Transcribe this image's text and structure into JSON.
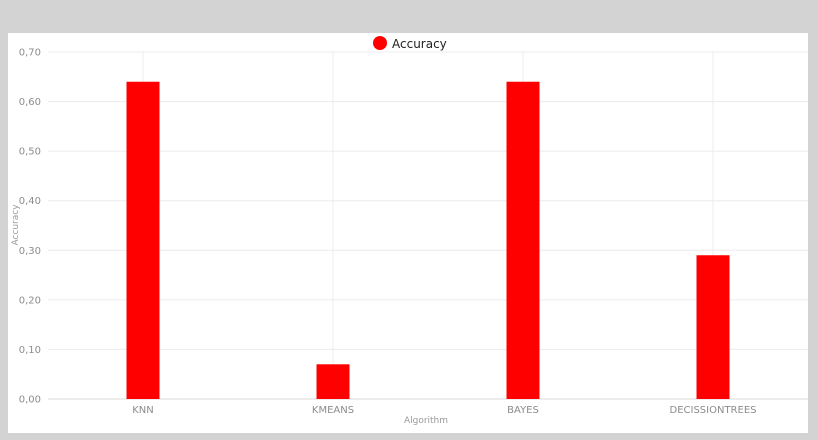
{
  "chart_data": {
    "type": "bar",
    "categories": [
      "KNN",
      "KMEANS",
      "BAYES",
      "DECISSIONTREES"
    ],
    "series": [
      {
        "name": "Accuracy",
        "values": [
          0.64,
          0.07,
          0.64,
          0.29
        ],
        "color": "#ff0000"
      }
    ],
    "xlabel": "Algorithm",
    "ylabel": "Accuracy",
    "ylim": [
      0,
      0.7
    ],
    "yticks": [
      "0,00",
      "0,10",
      "0,20",
      "0,30",
      "0,40",
      "0,50",
      "0,60",
      "0,70"
    ],
    "grid": true,
    "legend_position": "top-center"
  }
}
